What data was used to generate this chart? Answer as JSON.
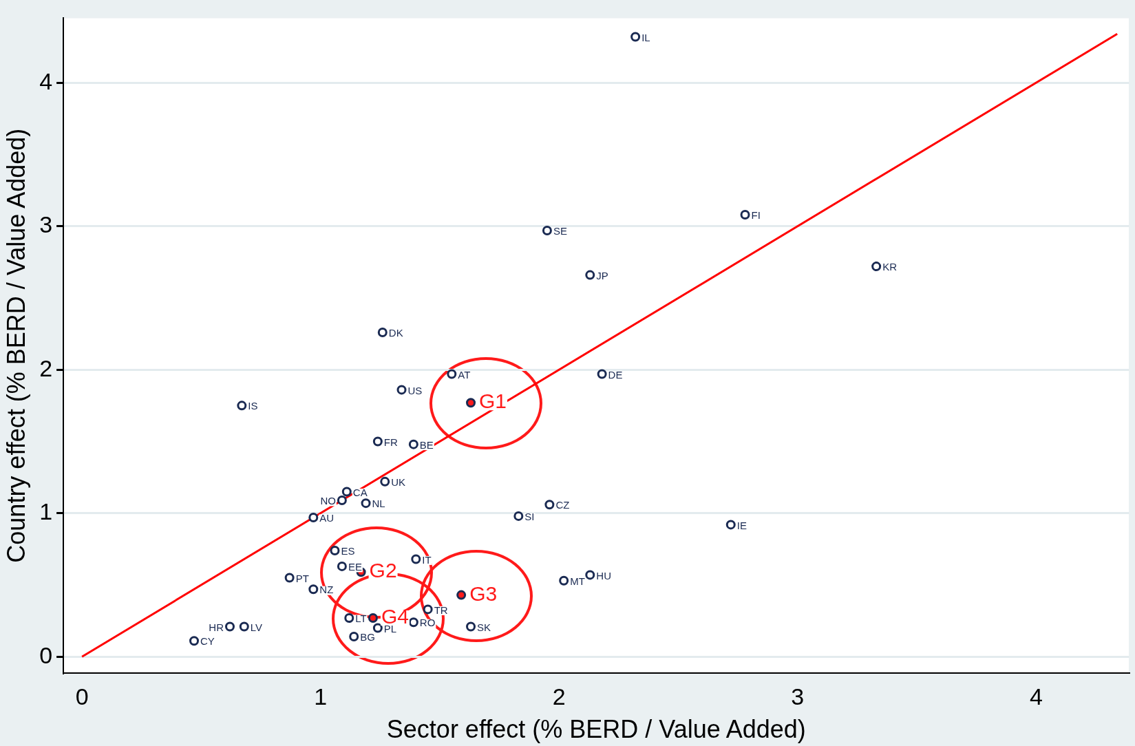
{
  "chart_data": {
    "type": "scatter",
    "xlabel": "Sector effect (% BERD / Value Added)",
    "ylabel": "Country effect (% BERD / Value Added)",
    "xlim": [
      -0.078,
      4.39
    ],
    "ylim": [
      -0.114,
      4.45
    ],
    "xticks": [
      0,
      1,
      2,
      3,
      4
    ],
    "yticks": [
      0,
      1,
      2,
      3,
      4
    ],
    "grid": "y",
    "legend": false,
    "marker": "circle",
    "series": [
      {
        "type": "scatter",
        "color": "#1a2a52",
        "x": [
          2.32,
          2.78,
          1.95,
          2.13,
          3.33,
          1.26,
          1.55,
          2.18,
          1.34,
          0.67,
          1.24,
          1.39,
          1.27,
          1.11,
          1.09,
          1.19,
          0.97,
          1.96,
          1.83,
          2.72,
          1.06,
          1.09,
          1.4,
          0.87,
          0.97,
          2.13,
          2.02,
          1.45,
          1.12,
          1.39,
          1.24,
          1.14,
          1.63,
          0.47,
          0.62,
          0.68
        ],
        "values": [
          4.32,
          3.08,
          2.97,
          2.66,
          2.72,
          2.26,
          1.97,
          1.97,
          1.86,
          1.75,
          1.5,
          1.48,
          1.22,
          1.15,
          1.09,
          1.07,
          0.97,
          1.06,
          0.98,
          0.92,
          0.74,
          0.63,
          0.68,
          0.55,
          0.47,
          0.57,
          0.53,
          0.33,
          0.27,
          0.24,
          0.2,
          0.14,
          0.21,
          0.11,
          0.21,
          0.21
        ],
        "value_labels": [
          "IL",
          "FI",
          "SE",
          "JP",
          "KR",
          "DK",
          "AT",
          "DE",
          "US",
          "IS",
          "FR",
          "BE",
          "UK",
          "CA",
          "NO",
          "NL",
          "AU",
          "CZ",
          "SI",
          "IE",
          "ES",
          "EE",
          "IT",
          "PT",
          "NZ",
          "HU",
          "MT",
          "TR",
          "LT",
          "RO",
          "PL",
          "BG",
          "SK",
          "CY",
          "HR",
          "LV"
        ]
      },
      {
        "type": "scatter",
        "color": "#1a2a52",
        "x": [
          1.63,
          1.17,
          1.59,
          1.22
        ],
        "values": [
          1.77,
          0.59,
          0.43,
          0.27
        ],
        "value_labels": [
          "G1",
          "G2",
          "G3",
          "G4"
        ]
      },
      {
        "type": "line",
        "color": "#ff0000",
        "x": [
          0,
          4.34
        ],
        "values": [
          0,
          4.34
        ],
        "marker": "none"
      }
    ]
  }
}
